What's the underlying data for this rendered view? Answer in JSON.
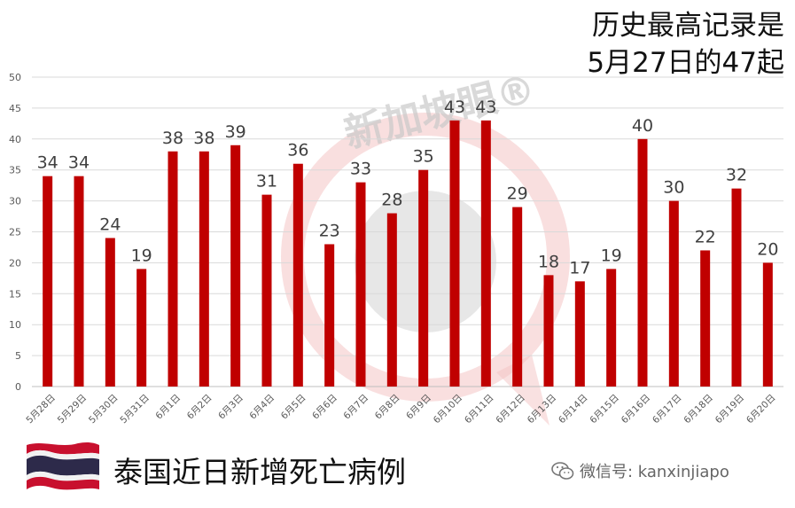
{
  "headline": {
    "line1": "历史最高记录是",
    "line2": "5月27日的47起"
  },
  "footer": {
    "title": "泰国近日新增死亡病例",
    "credit_prefix": "微信号: ",
    "credit_account": "kanxinjiapo"
  },
  "watermark": {
    "text": "新加坡眼®"
  },
  "colors": {
    "bar": "#c00000",
    "grid": "#d9d9d9",
    "axis_text": "#595959",
    "flag_red": "#c8102e",
    "flag_blue": "#2d2a4a",
    "watermark_red": "#f4c4c4",
    "watermark_grey": "#c9c9c9"
  },
  "chart_data": {
    "type": "bar",
    "categories": [
      "5月28日",
      "5月29日",
      "5月30日",
      "5月31日",
      "6月1日",
      "6月2日",
      "6月3日",
      "6月4日",
      "6月5日",
      "6月6日",
      "6月7日",
      "6月8日",
      "6月9日",
      "6月10日",
      "6月11日",
      "6月12日",
      "6月13日",
      "6月14日",
      "6月15日",
      "6月16日",
      "6月17日",
      "6月18日",
      "6月19日",
      "6月20日"
    ],
    "values": [
      34,
      34,
      24,
      19,
      38,
      38,
      39,
      31,
      36,
      23,
      33,
      28,
      35,
      43,
      43,
      29,
      18,
      17,
      19,
      40,
      30,
      22,
      32,
      20
    ],
    "ylim": [
      0,
      50
    ],
    "yticks": [
      0,
      5,
      10,
      15,
      20,
      25,
      30,
      35,
      40,
      45,
      50
    ],
    "grid": true,
    "data_labels": true,
    "legend": "none"
  }
}
